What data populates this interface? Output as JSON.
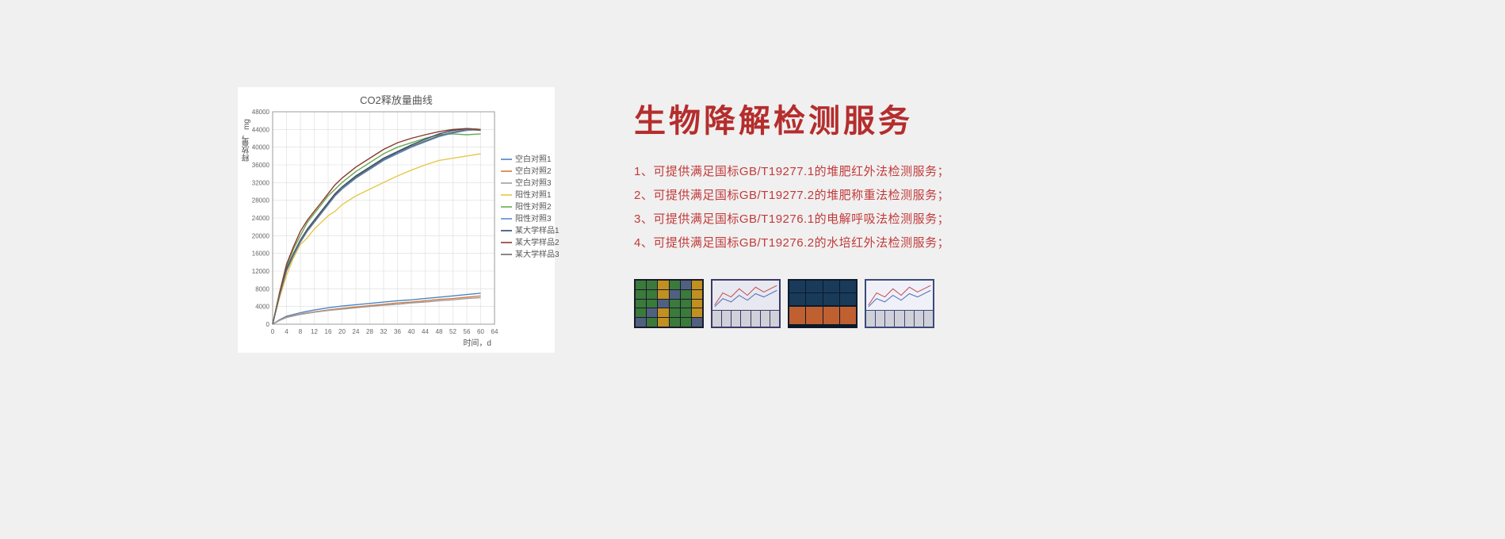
{
  "page_background": "#f0f0f0",
  "chart": {
    "type": "line",
    "title": "CO2释放量曲线",
    "title_fontsize": 13,
    "title_color": "#555555",
    "background_color": "#ffffff",
    "plot_area_border_color": "#888888",
    "grid_color": "#dcdcdc",
    "ylabel": "释放量，mg",
    "xlabel": "时间，d",
    "label_fontsize": 10,
    "label_color": "#555555",
    "xlim": [
      0,
      64
    ],
    "ylim": [
      0,
      48000
    ],
    "xtick_step": 4,
    "xtick_labels": [
      "0",
      "4",
      "8",
      "12",
      "16",
      "20",
      "24",
      "28",
      "32",
      "36",
      "40",
      "44",
      "48",
      "52",
      "56",
      "60",
      "64"
    ],
    "ytick_step": 4000,
    "ytick_labels": [
      "0",
      "4000",
      "8000",
      "12000",
      "16000",
      "20000",
      "24000",
      "28000",
      "32000",
      "36000",
      "40000",
      "44000",
      "48000"
    ],
    "tick_fontsize": 8,
    "tick_color": "#666666",
    "line_width": 1.4,
    "series": [
      {
        "name": "空白对照1",
        "color": "#4a86c5",
        "data": [
          [
            0,
            0
          ],
          [
            2,
            1000
          ],
          [
            4,
            1800
          ],
          [
            8,
            2600
          ],
          [
            12,
            3200
          ],
          [
            16,
            3700
          ],
          [
            20,
            4100
          ],
          [
            24,
            4400
          ],
          [
            28,
            4700
          ],
          [
            32,
            5000
          ],
          [
            36,
            5300
          ],
          [
            40,
            5500
          ],
          [
            44,
            5800
          ],
          [
            48,
            6100
          ],
          [
            52,
            6400
          ],
          [
            56,
            6700
          ],
          [
            60,
            7000
          ]
        ]
      },
      {
        "name": "空白对照2",
        "color": "#d87a3e",
        "data": [
          [
            0,
            0
          ],
          [
            2,
            900
          ],
          [
            4,
            1600
          ],
          [
            8,
            2300
          ],
          [
            12,
            2800
          ],
          [
            16,
            3200
          ],
          [
            20,
            3600
          ],
          [
            24,
            3900
          ],
          [
            28,
            4200
          ],
          [
            32,
            4500
          ],
          [
            36,
            4800
          ],
          [
            40,
            5000
          ],
          [
            44,
            5300
          ],
          [
            48,
            5600
          ],
          [
            52,
            5800
          ],
          [
            56,
            6100
          ],
          [
            60,
            6400
          ]
        ]
      },
      {
        "name": "空白对照3",
        "color": "#9e9e9e",
        "data": [
          [
            0,
            0
          ],
          [
            2,
            850
          ],
          [
            4,
            1500
          ],
          [
            8,
            2200
          ],
          [
            12,
            2700
          ],
          [
            16,
            3100
          ],
          [
            20,
            3400
          ],
          [
            24,
            3700
          ],
          [
            28,
            4000
          ],
          [
            32,
            4300
          ],
          [
            36,
            4500
          ],
          [
            40,
            4800
          ],
          [
            44,
            5000
          ],
          [
            48,
            5300
          ],
          [
            52,
            5500
          ],
          [
            56,
            5800
          ],
          [
            60,
            6000
          ]
        ]
      },
      {
        "name": "阳性对照1",
        "color": "#e6c84a",
        "data": [
          [
            0,
            0
          ],
          [
            2,
            6000
          ],
          [
            4,
            11000
          ],
          [
            6,
            15000
          ],
          [
            8,
            18000
          ],
          [
            10,
            19500
          ],
          [
            12,
            21500
          ],
          [
            14,
            23000
          ],
          [
            16,
            24500
          ],
          [
            18,
            25500
          ],
          [
            20,
            27000
          ],
          [
            24,
            29000
          ],
          [
            28,
            30500
          ],
          [
            32,
            32000
          ],
          [
            36,
            33500
          ],
          [
            40,
            34800
          ],
          [
            44,
            36000
          ],
          [
            48,
            37000
          ],
          [
            52,
            37500
          ],
          [
            56,
            38000
          ],
          [
            60,
            38500
          ]
        ]
      },
      {
        "name": "阳性对照2",
        "color": "#6aa84f",
        "data": [
          [
            0,
            0
          ],
          [
            2,
            7000
          ],
          [
            4,
            13000
          ],
          [
            6,
            17000
          ],
          [
            8,
            20000
          ],
          [
            10,
            23000
          ],
          [
            12,
            25000
          ],
          [
            14,
            27000
          ],
          [
            16,
            29000
          ],
          [
            18,
            30500
          ],
          [
            20,
            32000
          ],
          [
            24,
            34500
          ],
          [
            28,
            36500
          ],
          [
            32,
            38500
          ],
          [
            36,
            40000
          ],
          [
            40,
            41000
          ],
          [
            44,
            42000
          ],
          [
            48,
            42800
          ],
          [
            52,
            43000
          ],
          [
            56,
            42800
          ],
          [
            60,
            43000
          ]
        ]
      },
      {
        "name": "阳性对照3",
        "color": "#5b8bc9",
        "data": [
          [
            0,
            0
          ],
          [
            2,
            6500
          ],
          [
            4,
            12000
          ],
          [
            6,
            15500
          ],
          [
            8,
            18500
          ],
          [
            10,
            21000
          ],
          [
            12,
            23000
          ],
          [
            14,
            25000
          ],
          [
            16,
            27000
          ],
          [
            18,
            29000
          ],
          [
            20,
            30500
          ],
          [
            24,
            33000
          ],
          [
            28,
            35000
          ],
          [
            32,
            37000
          ],
          [
            36,
            38500
          ],
          [
            40,
            40000
          ],
          [
            44,
            41200
          ],
          [
            48,
            42400
          ],
          [
            52,
            43200
          ],
          [
            56,
            43800
          ],
          [
            60,
            44000
          ]
        ]
      },
      {
        "name": "某大学样品1",
        "color": "#2a4a6a",
        "data": [
          [
            0,
            0
          ],
          [
            2,
            6800
          ],
          [
            4,
            12500
          ],
          [
            6,
            16000
          ],
          [
            8,
            19000
          ],
          [
            10,
            21500
          ],
          [
            12,
            23500
          ],
          [
            14,
            25500
          ],
          [
            16,
            27500
          ],
          [
            18,
            29500
          ],
          [
            20,
            31000
          ],
          [
            24,
            33500
          ],
          [
            28,
            35500
          ],
          [
            32,
            37500
          ],
          [
            36,
            39000
          ],
          [
            40,
            40500
          ],
          [
            44,
            41800
          ],
          [
            48,
            43000
          ],
          [
            52,
            43800
          ],
          [
            56,
            44200
          ],
          [
            60,
            44000
          ]
        ]
      },
      {
        "name": "某大学样品2",
        "color": "#8a3a2a",
        "data": [
          [
            0,
            0
          ],
          [
            2,
            7200
          ],
          [
            4,
            13500
          ],
          [
            6,
            17500
          ],
          [
            8,
            21000
          ],
          [
            10,
            23500
          ],
          [
            12,
            25500
          ],
          [
            14,
            27500
          ],
          [
            16,
            29500
          ],
          [
            18,
            31500
          ],
          [
            20,
            33000
          ],
          [
            24,
            35500
          ],
          [
            28,
            37500
          ],
          [
            32,
            39500
          ],
          [
            36,
            41000
          ],
          [
            40,
            42000
          ],
          [
            44,
            42800
          ],
          [
            48,
            43500
          ],
          [
            52,
            44000
          ],
          [
            56,
            44200
          ],
          [
            60,
            44000
          ]
        ]
      },
      {
        "name": "某大学样品3",
        "color": "#6a6a6a",
        "data": [
          [
            0,
            0
          ],
          [
            2,
            6600
          ],
          [
            4,
            12200
          ],
          [
            6,
            15800
          ],
          [
            8,
            18800
          ],
          [
            10,
            21200
          ],
          [
            12,
            23200
          ],
          [
            14,
            25200
          ],
          [
            16,
            27200
          ],
          [
            18,
            29200
          ],
          [
            20,
            30800
          ],
          [
            24,
            33200
          ],
          [
            28,
            35200
          ],
          [
            32,
            37200
          ],
          [
            36,
            38800
          ],
          [
            40,
            40200
          ],
          [
            44,
            41400
          ],
          [
            48,
            42600
          ],
          [
            52,
            43400
          ],
          [
            56,
            44000
          ],
          [
            60,
            43800
          ]
        ]
      }
    ],
    "legend": {
      "position": "right",
      "fontsize": 10,
      "text_color": "#555555"
    }
  },
  "right": {
    "heading": "生物降解检测服务",
    "heading_color": "#b52d2d",
    "text_color": "#c23a3a",
    "items": [
      "1、可提供满足国标GB/T19277.1的堆肥红外法检测服务；",
      "2、可提供满足国标GB/T19277.2的堆肥称重法检测服务；",
      "3、可提供满足国标GB/T19276.1的电解呼吸法检测服务；",
      "4、可提供满足国标GB/T19276.2的水培红外法检测服务；"
    ]
  },
  "thumbnails": [
    {
      "type": "data-grid",
      "background": "#1a1a2a"
    },
    {
      "type": "line-chart-purple",
      "background": "#3a3a6a",
      "chart_bg": "#e8e8f0"
    },
    {
      "type": "data-panel",
      "background": "#0a1a2a"
    },
    {
      "type": "line-chart-blue",
      "background": "#3a4a7a",
      "chart_bg": "#f0f0f8"
    }
  ]
}
